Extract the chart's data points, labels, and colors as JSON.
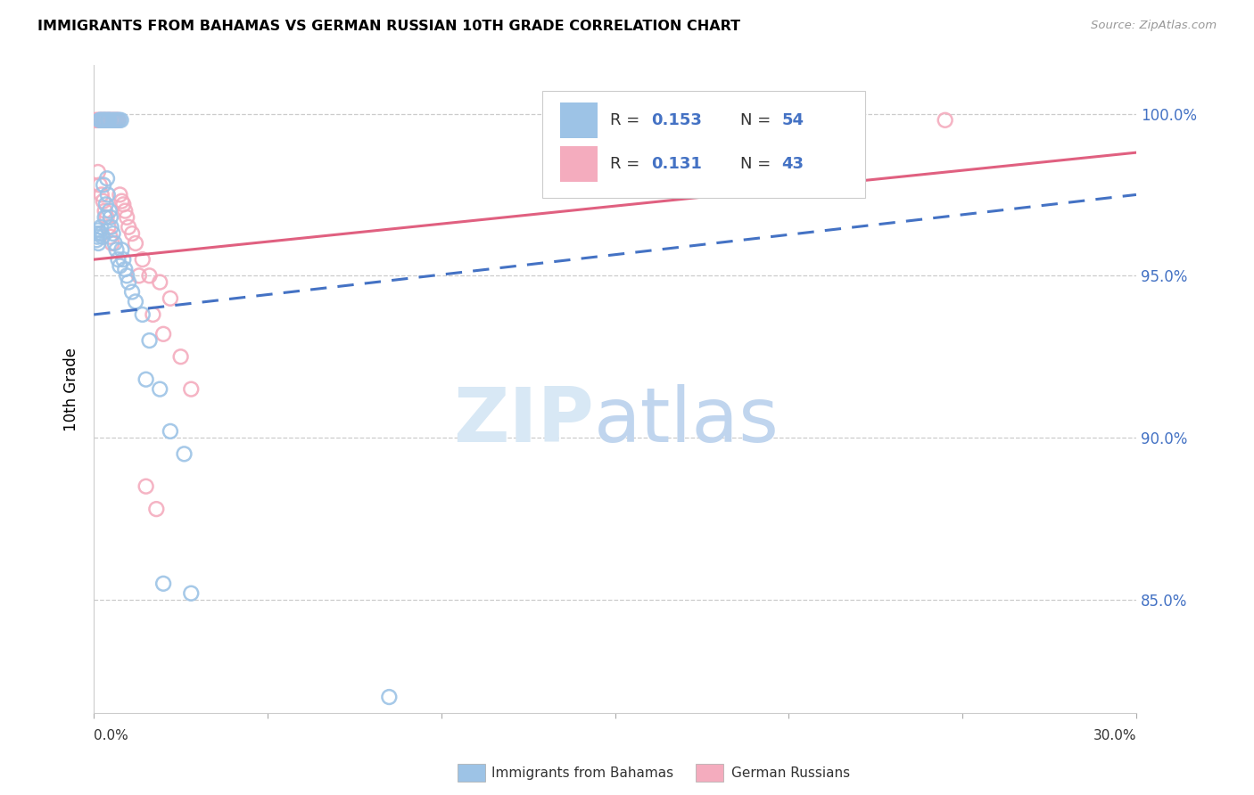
{
  "title": "IMMIGRANTS FROM BAHAMAS VS GERMAN RUSSIAN 10TH GRADE CORRELATION CHART",
  "source": "Source: ZipAtlas.com",
  "ylabel": "10th Grade",
  "xlim": [
    0.0,
    30.0
  ],
  "ylim": [
    81.5,
    101.5
  ],
  "legend_r1": "0.153",
  "legend_n1": "54",
  "legend_r2": "0.131",
  "legend_n2": "43",
  "legend_label1": "Immigrants from Bahamas",
  "legend_label2": "German Russians",
  "color_blue": "#9DC3E6",
  "color_pink": "#F4ACBE",
  "color_blue_line": "#4472C4",
  "color_pink_line": "#E06080",
  "color_blue_text": "#4472C4",
  "blue_line_x0": 0.0,
  "blue_line_y0": 93.8,
  "blue_line_x1": 30.0,
  "blue_line_y1": 97.5,
  "pink_line_x0": 0.0,
  "pink_line_y0": 95.5,
  "pink_line_x1": 30.0,
  "pink_line_y1": 98.8,
  "blue_scatter_x": [
    0.05,
    0.1,
    0.12,
    0.15,
    0.18,
    0.2,
    0.22,
    0.25,
    0.28,
    0.3,
    0.32,
    0.35,
    0.38,
    0.4,
    0.42,
    0.45,
    0.48,
    0.5,
    0.55,
    0.6,
    0.65,
    0.7,
    0.75,
    0.8,
    0.85,
    0.9,
    0.95,
    1.0,
    1.1,
    1.2,
    1.4,
    1.6,
    1.9,
    2.2,
    2.6,
    0.08,
    0.13,
    0.17,
    0.23,
    0.27,
    0.33,
    0.37,
    0.43,
    0.47,
    0.53,
    0.58,
    0.63,
    0.68,
    0.73,
    0.78,
    1.5,
    2.0,
    2.8,
    8.5
  ],
  "blue_scatter_y": [
    96.3,
    96.2,
    96.4,
    96.3,
    99.8,
    96.5,
    96.3,
    96.2,
    97.8,
    99.8,
    96.8,
    97.2,
    98.0,
    97.5,
    99.8,
    97.0,
    96.8,
    96.5,
    96.3,
    96.0,
    95.8,
    95.5,
    95.3,
    95.8,
    95.5,
    95.2,
    95.0,
    94.8,
    94.5,
    94.2,
    93.8,
    93.0,
    91.5,
    90.2,
    89.5,
    96.1,
    96.0,
    99.8,
    99.8,
    99.8,
    99.8,
    99.8,
    99.8,
    99.8,
    99.8,
    99.8,
    99.8,
    99.8,
    99.8,
    99.8,
    91.8,
    85.5,
    85.2,
    82.0
  ],
  "pink_scatter_x": [
    0.05,
    0.1,
    0.15,
    0.2,
    0.25,
    0.3,
    0.35,
    0.4,
    0.45,
    0.5,
    0.55,
    0.6,
    0.65,
    0.7,
    0.75,
    0.8,
    0.85,
    0.9,
    0.95,
    1.0,
    1.1,
    1.2,
    1.4,
    1.6,
    1.9,
    2.2,
    0.12,
    0.17,
    0.22,
    0.27,
    0.32,
    0.37,
    0.42,
    0.47,
    0.52,
    1.3,
    1.7,
    2.0,
    2.5,
    2.8,
    1.5,
    1.8,
    24.5
  ],
  "pink_scatter_y": [
    99.8,
    99.8,
    99.8,
    99.8,
    99.8,
    99.8,
    99.8,
    99.8,
    99.8,
    99.8,
    99.8,
    99.8,
    99.8,
    99.8,
    97.5,
    97.3,
    97.2,
    97.0,
    96.8,
    96.5,
    96.3,
    96.0,
    95.5,
    95.0,
    94.8,
    94.3,
    98.2,
    97.8,
    97.5,
    97.3,
    97.0,
    96.8,
    96.5,
    96.2,
    96.0,
    95.0,
    93.8,
    93.2,
    92.5,
    91.5,
    88.5,
    87.8,
    99.8
  ]
}
